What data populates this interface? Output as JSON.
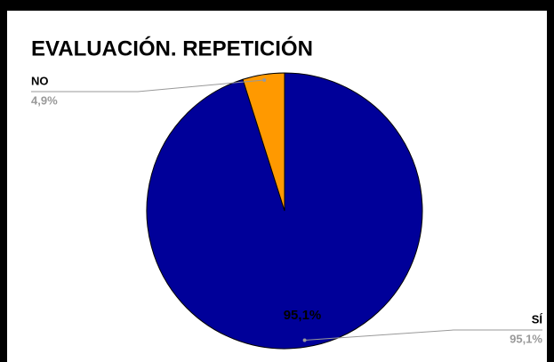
{
  "chart_data": {
    "type": "pie",
    "title": "EVALUACIÓN. REPETICIÓN",
    "categories": [
      "SÍ",
      "NO"
    ],
    "values": [
      95.1,
      4.9
    ],
    "value_labels": [
      "95,1%",
      "4,9%"
    ],
    "colors": [
      "#000099",
      "#ff9900"
    ]
  }
}
